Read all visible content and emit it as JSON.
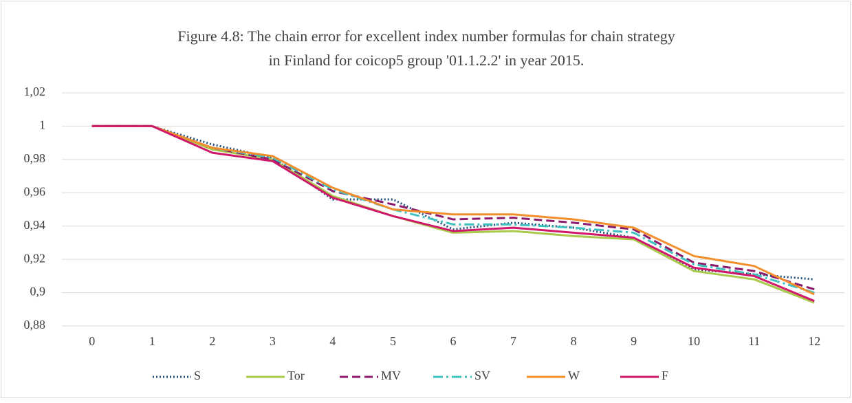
{
  "chart_data": {
    "type": "line",
    "title_lines": [
      "Figure 4.8: The chain error for excellent index number formulas for chain strategy",
      "in Finland for coicop5 group '01.1.2.2' in year 2015."
    ],
    "categories": [
      "0",
      "1",
      "2",
      "3",
      "4",
      "5",
      "6",
      "7",
      "8",
      "9",
      "10",
      "11",
      "12"
    ],
    "series": [
      {
        "name": "S",
        "color": "#1f4e79",
        "dash": "dotted",
        "values": [
          1,
          1,
          0.989,
          0.981,
          0.956,
          0.956,
          0.938,
          0.942,
          0.939,
          0.933,
          0.914,
          0.911,
          0.908
        ]
      },
      {
        "name": "Tor",
        "color": "#a9c94a",
        "dash": "solid",
        "values": [
          1,
          1,
          0.986,
          0.98,
          0.958,
          0.946,
          0.936,
          0.937,
          0.934,
          0.932,
          0.913,
          0.908,
          0.894
        ]
      },
      {
        "name": "MV",
        "color": "#8b1a6b",
        "dash": "dashed",
        "values": [
          1,
          1,
          0.987,
          0.98,
          0.961,
          0.953,
          0.944,
          0.945,
          0.942,
          0.938,
          0.918,
          0.913,
          0.902
        ]
      },
      {
        "name": "SV",
        "color": "#3fc1c0",
        "dash": "dashdot",
        "values": [
          1,
          1,
          0.987,
          0.981,
          0.962,
          0.95,
          0.941,
          0.941,
          0.939,
          0.936,
          0.917,
          0.911,
          0.9
        ]
      },
      {
        "name": "W",
        "color": "#f28e2b",
        "dash": "solid",
        "values": [
          1,
          1,
          0.987,
          0.982,
          0.963,
          0.95,
          0.947,
          0.947,
          0.944,
          0.939,
          0.922,
          0.916,
          0.899
        ]
      },
      {
        "name": "F",
        "color": "#d0186a",
        "dash": "solid",
        "values": [
          1,
          1,
          0.984,
          0.979,
          0.957,
          0.946,
          0.937,
          0.939,
          0.936,
          0.933,
          0.915,
          0.91,
          0.895
        ]
      }
    ],
    "ylim": [
      0.88,
      1.02
    ],
    "yticks": [
      {
        "value": 0.88,
        "label": "0,88"
      },
      {
        "value": 0.9,
        "label": "0,9"
      },
      {
        "value": 0.92,
        "label": "0,92"
      },
      {
        "value": 0.94,
        "label": "0,94"
      },
      {
        "value": 0.96,
        "label": "0,96"
      },
      {
        "value": 0.98,
        "label": "0,98"
      },
      1,
      {
        "value": 1.02,
        "label": "1,02"
      }
    ],
    "grid": true,
    "legend": "bottom"
  }
}
